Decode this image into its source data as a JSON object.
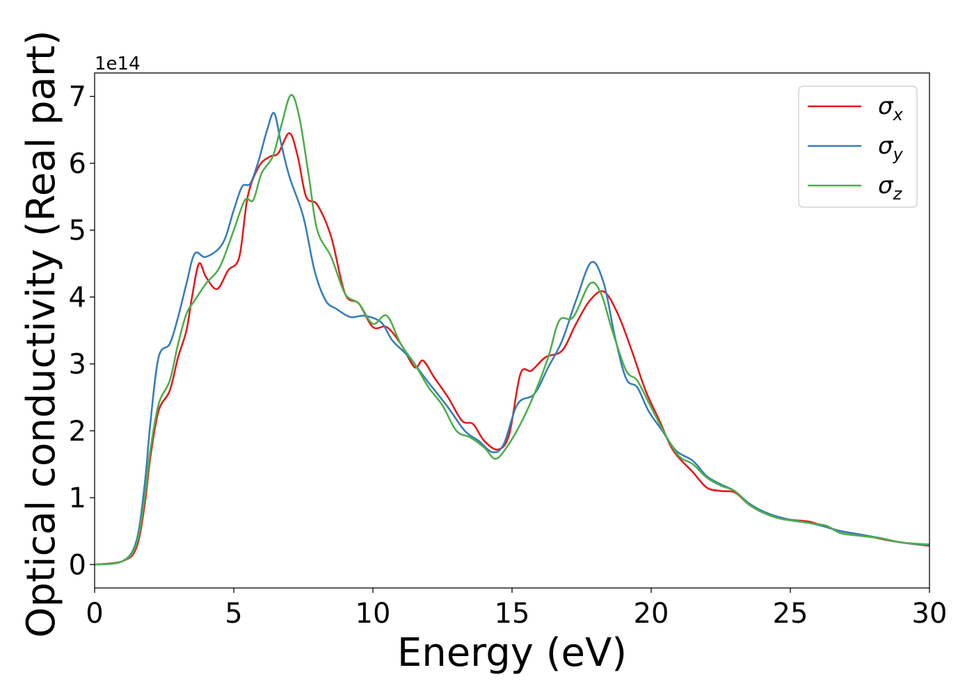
{
  "chart_data": {
    "type": "line",
    "xlabel": "Energy (eV)",
    "ylabel": "Optical conductivity (Real part)",
    "y_offset_label": "1e14",
    "y_scale": 100000000000000.0,
    "xlim": [
      0,
      30
    ],
    "ylim": [
      -0.35,
      7.35
    ],
    "x_ticks": [
      0,
      5,
      10,
      15,
      20,
      25,
      30
    ],
    "y_ticks": [
      0,
      1,
      2,
      3,
      4,
      5,
      6,
      7
    ],
    "grid": false,
    "legend_position": "top-right",
    "series": [
      {
        "name": "σx",
        "symbol": "σ",
        "subscript": "x",
        "color": "#e41a1c",
        "points": [
          [
            0,
            0
          ],
          [
            1,
            0.05
          ],
          [
            1.5,
            0.25
          ],
          [
            1.8,
            0.9
          ],
          [
            2,
            1.6
          ],
          [
            2.3,
            2.3
          ],
          [
            2.7,
            2.6
          ],
          [
            3,
            3.1
          ],
          [
            3.3,
            3.5
          ],
          [
            3.5,
            4.0
          ],
          [
            3.75,
            4.5
          ],
          [
            4,
            4.3
          ],
          [
            4.4,
            4.12
          ],
          [
            4.8,
            4.4
          ],
          [
            5.2,
            4.6
          ],
          [
            5.5,
            5.5
          ],
          [
            5.9,
            5.95
          ],
          [
            6.3,
            6.1
          ],
          [
            6.6,
            6.15
          ],
          [
            7,
            6.45
          ],
          [
            7.3,
            6.1
          ],
          [
            7.6,
            5.5
          ],
          [
            8,
            5.38
          ],
          [
            8.5,
            4.9
          ],
          [
            9,
            4.05
          ],
          [
            9.5,
            3.9
          ],
          [
            10,
            3.55
          ],
          [
            10.5,
            3.55
          ],
          [
            11,
            3.3
          ],
          [
            11.5,
            2.95
          ],
          [
            11.8,
            3.05
          ],
          [
            12.2,
            2.8
          ],
          [
            12.7,
            2.5
          ],
          [
            13.2,
            2.15
          ],
          [
            13.6,
            2.1
          ],
          [
            14,
            1.85
          ],
          [
            14.5,
            1.72
          ],
          [
            14.9,
            1.95
          ],
          [
            15.3,
            2.85
          ],
          [
            15.7,
            2.9
          ],
          [
            16.2,
            3.1
          ],
          [
            16.8,
            3.2
          ],
          [
            17.3,
            3.6
          ],
          [
            17.8,
            3.95
          ],
          [
            18.3,
            4.08
          ],
          [
            18.8,
            3.75
          ],
          [
            19.3,
            3.2
          ],
          [
            19.8,
            2.6
          ],
          [
            20.3,
            2.15
          ],
          [
            20.8,
            1.7
          ],
          [
            21.5,
            1.38
          ],
          [
            22,
            1.15
          ],
          [
            22.5,
            1.1
          ],
          [
            23,
            1.08
          ],
          [
            23.5,
            0.9
          ],
          [
            24,
            0.78
          ],
          [
            24.5,
            0.72
          ],
          [
            25,
            0.67
          ],
          [
            25.7,
            0.64
          ],
          [
            26.3,
            0.56
          ],
          [
            26.8,
            0.5
          ],
          [
            27.5,
            0.45
          ],
          [
            28.3,
            0.38
          ],
          [
            29,
            0.33
          ],
          [
            30,
            0.28
          ]
        ]
      },
      {
        "name": "σy",
        "symbol": "σ",
        "subscript": "y",
        "color": "#377eb8",
        "points": [
          [
            0,
            0
          ],
          [
            1,
            0.05
          ],
          [
            1.5,
            0.35
          ],
          [
            1.8,
            1.2
          ],
          [
            2,
            2.1
          ],
          [
            2.3,
            3.1
          ],
          [
            2.7,
            3.3
          ],
          [
            3,
            3.7
          ],
          [
            3.3,
            4.2
          ],
          [
            3.6,
            4.65
          ],
          [
            4,
            4.6
          ],
          [
            4.6,
            4.8
          ],
          [
            5,
            5.3
          ],
          [
            5.3,
            5.65
          ],
          [
            5.6,
            5.7
          ],
          [
            5.9,
            6.05
          ],
          [
            6.2,
            6.5
          ],
          [
            6.45,
            6.75
          ],
          [
            6.7,
            6.3
          ],
          [
            7,
            5.8
          ],
          [
            7.5,
            5.2
          ],
          [
            7.9,
            4.4
          ],
          [
            8.3,
            3.95
          ],
          [
            8.7,
            3.82
          ],
          [
            9.2,
            3.7
          ],
          [
            9.7,
            3.72
          ],
          [
            10.3,
            3.62
          ],
          [
            10.7,
            3.35
          ],
          [
            11.3,
            3.1
          ],
          [
            12,
            2.72
          ],
          [
            12.7,
            2.35
          ],
          [
            13.3,
            2.0
          ],
          [
            13.8,
            1.85
          ],
          [
            14.3,
            1.68
          ],
          [
            14.7,
            1.8
          ],
          [
            15.2,
            2.4
          ],
          [
            15.8,
            2.55
          ],
          [
            16.3,
            2.95
          ],
          [
            16.8,
            3.35
          ],
          [
            17.3,
            3.95
          ],
          [
            17.85,
            4.52
          ],
          [
            18.3,
            4.2
          ],
          [
            18.7,
            3.4
          ],
          [
            19.1,
            2.78
          ],
          [
            19.5,
            2.65
          ],
          [
            19.9,
            2.3
          ],
          [
            20.4,
            2.0
          ],
          [
            20.9,
            1.7
          ],
          [
            21.5,
            1.55
          ],
          [
            22,
            1.32
          ],
          [
            22.5,
            1.2
          ],
          [
            23,
            1.1
          ],
          [
            23.5,
            0.92
          ],
          [
            24,
            0.8
          ],
          [
            24.5,
            0.72
          ],
          [
            25,
            0.67
          ],
          [
            25.7,
            0.62
          ],
          [
            26.3,
            0.56
          ],
          [
            26.8,
            0.5
          ],
          [
            27.5,
            0.45
          ],
          [
            28.3,
            0.39
          ],
          [
            29,
            0.33
          ],
          [
            30,
            0.29
          ]
        ]
      },
      {
        "name": "σz",
        "symbol": "σ",
        "subscript": "z",
        "color": "#4daf4a",
        "points": [
          [
            0,
            0
          ],
          [
            1,
            0.05
          ],
          [
            1.5,
            0.3
          ],
          [
            1.8,
            1.0
          ],
          [
            2,
            1.7
          ],
          [
            2.3,
            2.4
          ],
          [
            2.7,
            2.75
          ],
          [
            3,
            3.3
          ],
          [
            3.3,
            3.75
          ],
          [
            3.6,
            3.95
          ],
          [
            4,
            4.2
          ],
          [
            4.5,
            4.45
          ],
          [
            5,
            5.0
          ],
          [
            5.4,
            5.45
          ],
          [
            5.7,
            5.45
          ],
          [
            6,
            5.85
          ],
          [
            6.4,
            6.1
          ],
          [
            6.7,
            6.55
          ],
          [
            7.05,
            7.02
          ],
          [
            7.35,
            6.7
          ],
          [
            7.7,
            5.8
          ],
          [
            8,
            5.0
          ],
          [
            8.5,
            4.6
          ],
          [
            9,
            4.05
          ],
          [
            9.5,
            3.9
          ],
          [
            10,
            3.6
          ],
          [
            10.5,
            3.72
          ],
          [
            11,
            3.3
          ],
          [
            11.5,
            3.0
          ],
          [
            12,
            2.65
          ],
          [
            12.5,
            2.38
          ],
          [
            13,
            2.0
          ],
          [
            13.5,
            1.9
          ],
          [
            14,
            1.75
          ],
          [
            14.4,
            1.58
          ],
          [
            14.8,
            1.75
          ],
          [
            15.3,
            2.1
          ],
          [
            15.8,
            2.55
          ],
          [
            16.3,
            3.1
          ],
          [
            16.7,
            3.65
          ],
          [
            17.2,
            3.7
          ],
          [
            17.8,
            4.2
          ],
          [
            18.2,
            4.05
          ],
          [
            18.6,
            3.5
          ],
          [
            19.1,
            2.9
          ],
          [
            19.5,
            2.75
          ],
          [
            20,
            2.35
          ],
          [
            20.5,
            1.95
          ],
          [
            21,
            1.62
          ],
          [
            21.5,
            1.5
          ],
          [
            22,
            1.3
          ],
          [
            22.5,
            1.18
          ],
          [
            23,
            1.1
          ],
          [
            23.5,
            0.9
          ],
          [
            24,
            0.78
          ],
          [
            24.5,
            0.7
          ],
          [
            25,
            0.66
          ],
          [
            25.7,
            0.62
          ],
          [
            26.3,
            0.58
          ],
          [
            26.8,
            0.47
          ],
          [
            27.5,
            0.43
          ],
          [
            28.3,
            0.39
          ],
          [
            29,
            0.33
          ],
          [
            30,
            0.3
          ]
        ]
      }
    ]
  }
}
